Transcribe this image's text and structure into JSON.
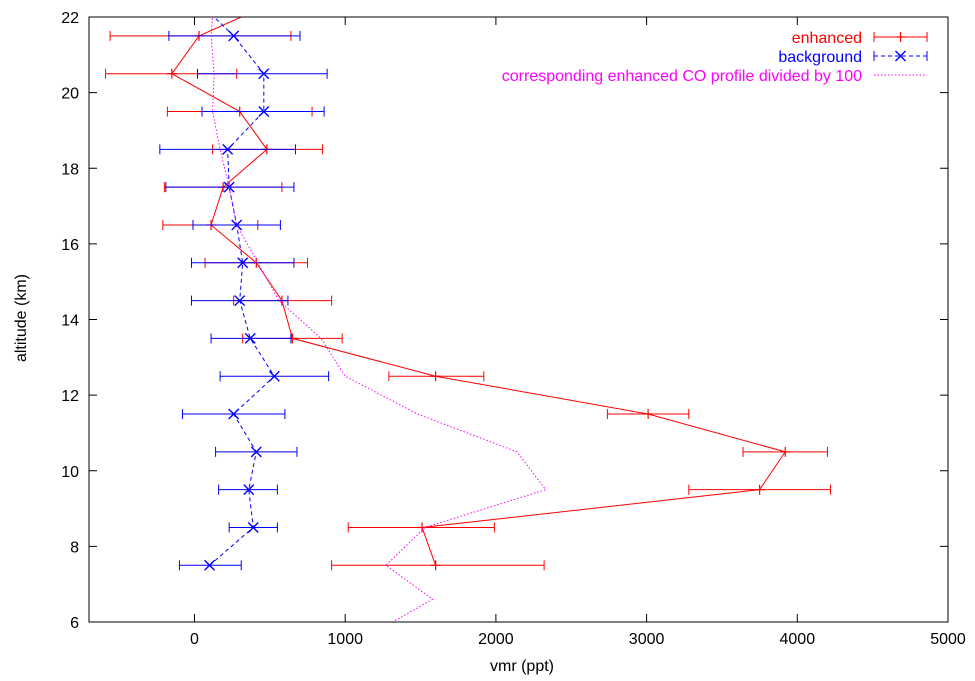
{
  "chart_data": {
    "type": "line",
    "xlabel": "vmr (ppt)",
    "ylabel": "altitude (km)",
    "xlim": [
      -700,
      5000
    ],
    "ylim": [
      6,
      22
    ],
    "xticks": [
      0,
      1000,
      2000,
      3000,
      4000,
      5000
    ],
    "yticks": [
      6,
      8,
      10,
      12,
      14,
      16,
      18,
      20,
      22
    ],
    "legend_position": "top-right",
    "grid": false,
    "series": [
      {
        "name": "enhanced",
        "color": "#ff0000",
        "style": "solid",
        "marker": "plus",
        "errorbars": true,
        "points": [
          {
            "x": 1600,
            "y": 7.5,
            "xmin": 910,
            "xmax": 2320
          },
          {
            "x": 1510,
            "y": 8.5,
            "xmin": 1020,
            "xmax": 1990
          },
          {
            "x": 3750,
            "y": 9.5,
            "xmin": 3280,
            "xmax": 4220
          },
          {
            "x": 3920,
            "y": 10.5,
            "xmin": 3640,
            "xmax": 4200
          },
          {
            "x": 3010,
            "y": 11.5,
            "xmin": 2740,
            "xmax": 3280
          },
          {
            "x": 1600,
            "y": 12.5,
            "xmin": 1290,
            "xmax": 1920
          },
          {
            "x": 650,
            "y": 13.5,
            "xmin": 320,
            "xmax": 980
          },
          {
            "x": 580,
            "y": 14.5,
            "xmin": 260,
            "xmax": 910
          },
          {
            "x": 410,
            "y": 15.5,
            "xmin": 70,
            "xmax": 750
          },
          {
            "x": 110,
            "y": 16.5,
            "xmin": -210,
            "xmax": 420
          },
          {
            "x": 190,
            "y": 17.5,
            "xmin": -200,
            "xmax": 580
          },
          {
            "x": 480,
            "y": 18.5,
            "xmin": 120,
            "xmax": 850
          },
          {
            "x": 300,
            "y": 19.5,
            "xmin": -180,
            "xmax": 780
          },
          {
            "x": -150,
            "y": 20.5,
            "xmin": -590,
            "xmax": 280
          },
          {
            "x": 30,
            "y": 21.5,
            "xmin": -560,
            "xmax": 640
          },
          {
            "x": 310,
            "y": 22.0
          }
        ]
      },
      {
        "name": "background",
        "color": "#0000ff",
        "style": "dashed",
        "marker": "cross",
        "errorbars": true,
        "points": [
          {
            "x": 100,
            "y": 7.5,
            "xmin": -100,
            "xmax": 310
          },
          {
            "x": 390,
            "y": 8.5,
            "xmin": 230,
            "xmax": 550
          },
          {
            "x": 360,
            "y": 9.5,
            "xmin": 160,
            "xmax": 550
          },
          {
            "x": 410,
            "y": 10.5,
            "xmin": 140,
            "xmax": 680
          },
          {
            "x": 260,
            "y": 11.5,
            "xmin": -80,
            "xmax": 600
          },
          {
            "x": 530,
            "y": 12.5,
            "xmin": 170,
            "xmax": 890
          },
          {
            "x": 370,
            "y": 13.5,
            "xmin": 110,
            "xmax": 640
          },
          {
            "x": 300,
            "y": 14.5,
            "xmin": -20,
            "xmax": 620
          },
          {
            "x": 320,
            "y": 15.5,
            "xmin": -20,
            "xmax": 660
          },
          {
            "x": 280,
            "y": 16.5,
            "xmin": -10,
            "xmax": 570
          },
          {
            "x": 230,
            "y": 17.5,
            "xmin": -190,
            "xmax": 660
          },
          {
            "x": 220,
            "y": 18.5,
            "xmin": -230,
            "xmax": 670
          },
          {
            "x": 460,
            "y": 19.5,
            "xmin": 50,
            "xmax": 860
          },
          {
            "x": 460,
            "y": 20.5,
            "xmin": 20,
            "xmax": 880
          },
          {
            "x": 260,
            "y": 21.5,
            "xmin": -170,
            "xmax": 700
          },
          {
            "x": 130,
            "y": 22.0
          }
        ]
      },
      {
        "name": "corresponding enhanced CO profile divided by 100",
        "color": "#ff00ff",
        "style": "dotted",
        "marker": "none",
        "errorbars": false,
        "points": [
          {
            "x": 1270,
            "y": 5.9
          },
          {
            "x": 1580,
            "y": 6.6
          },
          {
            "x": 1270,
            "y": 7.5
          },
          {
            "x": 1530,
            "y": 8.5
          },
          {
            "x": 2330,
            "y": 9.5
          },
          {
            "x": 2140,
            "y": 10.5
          },
          {
            "x": 1480,
            "y": 11.5
          },
          {
            "x": 1000,
            "y": 12.5
          },
          {
            "x": 840,
            "y": 13.5
          },
          {
            "x": 560,
            "y": 14.5
          },
          {
            "x": 420,
            "y": 15.5
          },
          {
            "x": 280,
            "y": 16.5
          },
          {
            "x": 230,
            "y": 17.5
          },
          {
            "x": 170,
            "y": 18.5
          },
          {
            "x": 120,
            "y": 19.5
          },
          {
            "x": 130,
            "y": 20.5
          },
          {
            "x": 110,
            "y": 21.5
          },
          {
            "x": 120,
            "y": 22.0
          }
        ]
      }
    ]
  }
}
